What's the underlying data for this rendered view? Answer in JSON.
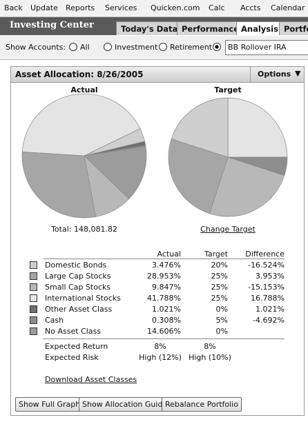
{
  "menu": [
    "Back",
    "Update",
    "Reports",
    "Services",
    "Quicken.com",
    "Calc",
    "Accts",
    "Calendar"
  ],
  "header": {
    "title": "Investing Center",
    "tabs": [
      "Today's Data",
      "Performance",
      "Analysis",
      "Portfolio"
    ],
    "active_tab": 2
  },
  "accounts": {
    "label": "Show Accounts:",
    "options": [
      "All",
      "Investment",
      "Retirement"
    ],
    "selected": "BB Rollover IRA"
  },
  "panel": {
    "title": "Asset Allocation: 8/26/2005",
    "options": "Options"
  },
  "charts": {
    "actual_title": "Actual",
    "target_title": "Target",
    "total": "Total: 148,081.82",
    "change_target": "Change Target"
  },
  "table": {
    "columns": [
      "Actual",
      "Target",
      "Difference"
    ],
    "rows": [
      {
        "name": "Domestic Bonds",
        "actual": "3.476%",
        "target": "20%",
        "difference": "-16.524%",
        "color": "#cfcfcf"
      },
      {
        "name": "Large Cap Stocks",
        "actual": "28.953%",
        "target": "25%",
        "difference": "3.953%",
        "color": "#a6a6a6"
      },
      {
        "name": "Small Cap Stocks",
        "actual": "9.847%",
        "target": "25%",
        "difference": "-15.153%",
        "color": "#b8b8b8"
      },
      {
        "name": "International Stocks",
        "actual": "41.788%",
        "target": "25%",
        "difference": "16.788%",
        "color": "#e4e4e4"
      },
      {
        "name": "Other Asset Class",
        "actual": "1.021%",
        "target": "0%",
        "difference": "1.021%",
        "color": "#707070"
      },
      {
        "name": "Cash",
        "actual": "0.308%",
        "target": "5%",
        "difference": "-4.692%",
        "color": "#8e8e8e"
      },
      {
        "name": "No Asset Class",
        "actual": "14.606%",
        "target": "0%",
        "difference": "",
        "color": "#9c9c9c"
      }
    ],
    "summary": [
      {
        "name": "Expected Return",
        "actual": "8%",
        "target": "8%"
      },
      {
        "name": "Expected Risk",
        "actual": "High (12%)",
        "target": "High (10%)"
      }
    ]
  },
  "download": "Download Asset Classes",
  "buttons": [
    "Show Full Graph",
    "Show Allocation Guide",
    "Rebalance Portfolio"
  ]
}
